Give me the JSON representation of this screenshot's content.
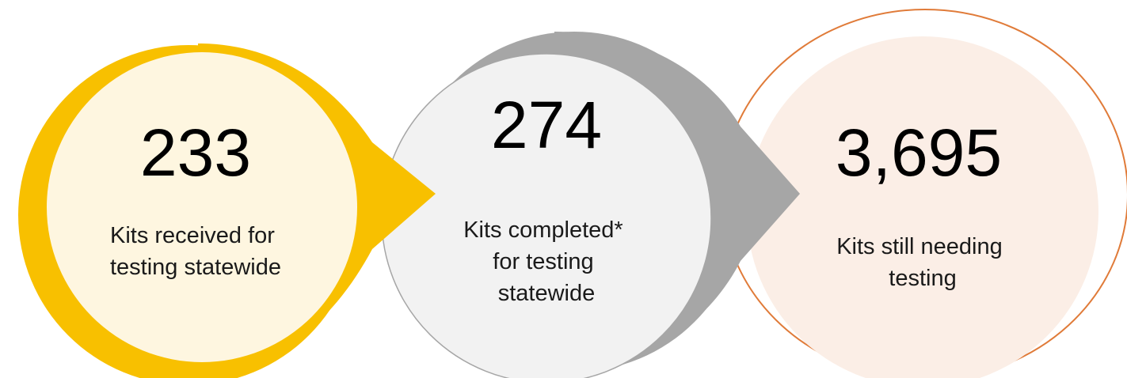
{
  "items": [
    {
      "number": "233",
      "label_lines": [
        "Kits received for",
        "testing statewide"
      ]
    },
    {
      "number": "274",
      "label_lines": [
        "Kits completed*",
        "for testing",
        "statewide"
      ]
    },
    {
      "number": "3,695",
      "label_lines": [
        "Kits still needing",
        "testing"
      ]
    }
  ]
}
